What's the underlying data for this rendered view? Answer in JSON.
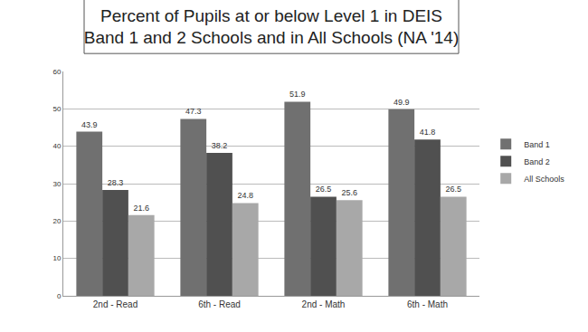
{
  "chart_data": {
    "type": "bar",
    "title": [
      "Percent of Pupils at or below Level 1 in DEIS",
      "Band 1 and 2 Schools and in All Schools (NA '14)"
    ],
    "categories": [
      "2nd - Read",
      "6th - Read",
      "2nd - Math",
      "6th - Math"
    ],
    "series": [
      {
        "name": "Band 1",
        "color": "#707070",
        "values": [
          43.9,
          47.3,
          51.9,
          49.9
        ]
      },
      {
        "name": "Band 2",
        "color": "#505050",
        "values": [
          28.3,
          38.2,
          26.5,
          41.8
        ]
      },
      {
        "name": "All Schools",
        "color": "#a8a8a8",
        "values": [
          21.6,
          24.8,
          25.6,
          26.5
        ]
      }
    ],
    "ylim": [
      0,
      60
    ],
    "yticks": [
      0,
      10,
      20,
      30,
      40,
      50,
      60
    ],
    "grid": true,
    "legend": "right",
    "data_labels": true
  }
}
